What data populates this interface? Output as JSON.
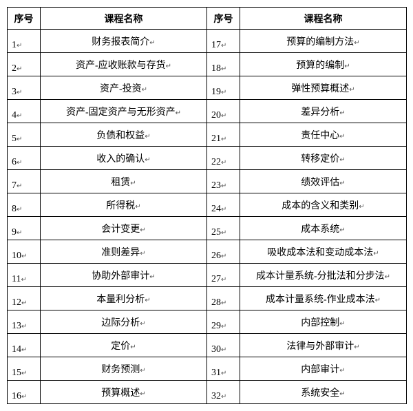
{
  "columns": {
    "seq": "序号",
    "name": "课程名称"
  },
  "marker": "↵",
  "rows_left": [
    {
      "n": "1",
      "name": "财务报表简介"
    },
    {
      "n": "2",
      "name": "资产-应收账款与存货"
    },
    {
      "n": "3",
      "name": "资产-投资"
    },
    {
      "n": "4",
      "name": "资产-固定资产与无形资产"
    },
    {
      "n": "5",
      "name": "负债和权益"
    },
    {
      "n": "6",
      "name": "收入的确认"
    },
    {
      "n": "7",
      "name": "租赁"
    },
    {
      "n": "8",
      "name": "所得税"
    },
    {
      "n": "9",
      "name": "会计变更"
    },
    {
      "n": "10",
      "name": "准则差异"
    },
    {
      "n": "11",
      "name": "协助外部审计"
    },
    {
      "n": "12",
      "name": "本量利分析"
    },
    {
      "n": "13",
      "name": "边际分析"
    },
    {
      "n": "14",
      "name": "定价"
    },
    {
      "n": "15",
      "name": "财务预测"
    },
    {
      "n": "16",
      "name": "预算概述"
    }
  ],
  "rows_right": [
    {
      "n": "17",
      "name": "预算的编制方法"
    },
    {
      "n": "18",
      "name": "预算的编制"
    },
    {
      "n": "19",
      "name": "弹性预算概述"
    },
    {
      "n": "20",
      "name": "差异分析"
    },
    {
      "n": "21",
      "name": "责任中心"
    },
    {
      "n": "22",
      "name": "转移定价"
    },
    {
      "n": "23",
      "name": "绩效评估"
    },
    {
      "n": "24",
      "name": "成本的含义和类别"
    },
    {
      "n": "25",
      "name": "成本系统"
    },
    {
      "n": "26",
      "name": "吸收成本法和变动成本法"
    },
    {
      "n": "27",
      "name": "成本计量系统-分批法和分步法"
    },
    {
      "n": "28",
      "name": "成本计量系统-作业成本法"
    },
    {
      "n": "29",
      "name": "内部控制"
    },
    {
      "n": "30",
      "name": "法律与外部审计"
    },
    {
      "n": "31",
      "name": "内部审计"
    },
    {
      "n": "32",
      "name": "系统安全"
    }
  ]
}
